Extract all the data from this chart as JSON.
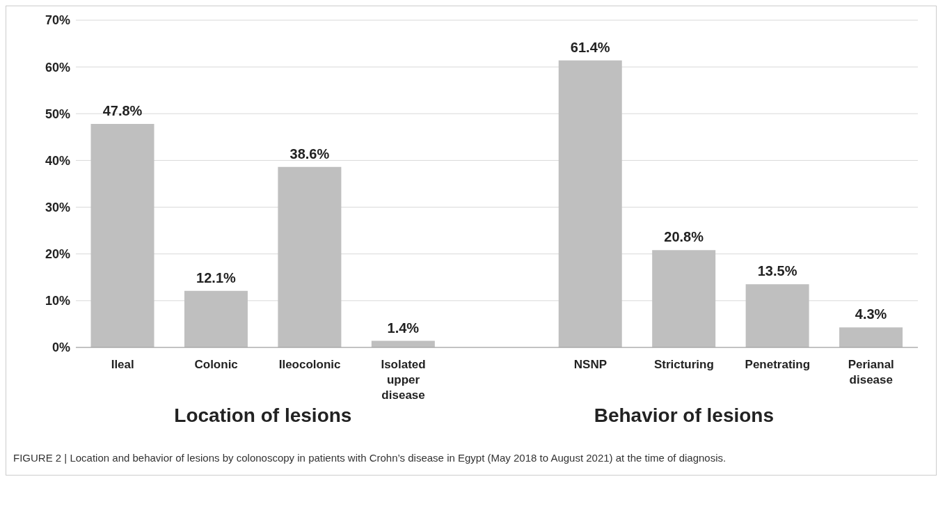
{
  "chart_data": {
    "type": "bar",
    "categories": [
      "Ileal",
      "Colonic",
      "Ileocolonic",
      "Isolated upper disease",
      null,
      "NSNP",
      "Stricturing",
      "Penetrating",
      "Perianal disease"
    ],
    "values": [
      47.8,
      12.1,
      38.6,
      1.4,
      null,
      61.4,
      20.8,
      13.5,
      4.3
    ],
    "value_labels": [
      "47.8%",
      "12.1%",
      "38.6%",
      "1.4%",
      null,
      "61.4%",
      "20.8%",
      "13.5%",
      "4.3%"
    ],
    "color": "#bfbfbf",
    "ylim": [
      0,
      70
    ],
    "yticks": [
      {
        "value": 0,
        "label": "0%"
      },
      {
        "value": 10,
        "label": "10%"
      },
      {
        "value": 20,
        "label": "20%"
      },
      {
        "value": 30,
        "label": "30%"
      },
      {
        "value": 40,
        "label": "40%"
      },
      {
        "value": 50,
        "label": "50%"
      },
      {
        "value": 60,
        "label": "60%"
      },
      {
        "value": 70,
        "label": "70%"
      }
    ],
    "grid": "y",
    "annotations": [
      "Location of lesions",
      "Behavior of lesions",
      "FIGURE 2 | Location and behavior of lesions by colonoscopy in patients with Crohn’s disease in Egypt (May 2018 to August 2021) at the time of diagnosis."
    ]
  }
}
